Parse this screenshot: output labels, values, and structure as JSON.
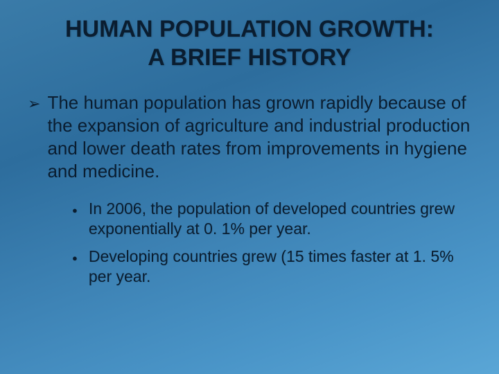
{
  "slide": {
    "background_gradient": [
      "#3a7ba8",
      "#2d6d9d",
      "#3c81b3",
      "#4a95c8",
      "#5aa6d6"
    ],
    "text_color": "#0a1d30",
    "title": {
      "line1": "HUMAN POPULATION GROWTH:",
      "line2": "A BRIEF HISTORY",
      "fontsize": 34,
      "weight": "bold",
      "align": "center"
    },
    "bullets_lvl1": [
      {
        "marker": "➢",
        "text": "The human population has grown rapidly because of the expansion of agriculture and industrial production and lower death rates from improvements in hygiene and medicine."
      }
    ],
    "bullets_lvl2": [
      {
        "marker": "●",
        "text": "In 2006, the population of developed countries grew exponentially at 0. 1% per year."
      },
      {
        "marker": "●",
        "text": "Developing countries grew (15 times faster at 1. 5% per year."
      }
    ],
    "typography": {
      "lvl1_fontsize": 26,
      "lvl2_fontsize": 23,
      "font_family": "Arial"
    }
  }
}
